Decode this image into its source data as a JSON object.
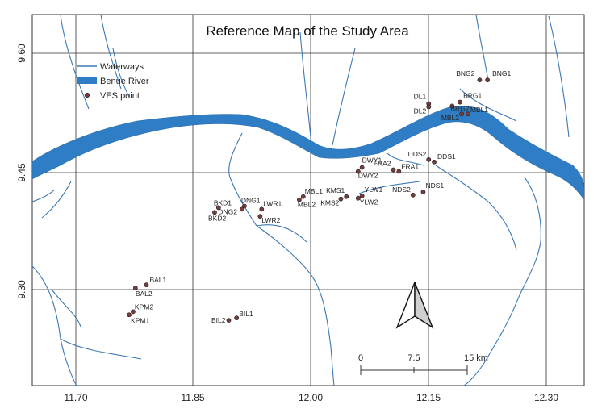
{
  "title": "Reference Map of the Study Area",
  "x_ticks": [
    "11.70",
    "11.85",
    "12.00",
    "12.15",
    "12.30"
  ],
  "y_ticks": [
    "9.60",
    "9.45",
    "9.30"
  ],
  "legend": {
    "waterways": "Waterways",
    "river": "Benue River",
    "ves": "VES point"
  },
  "colors": {
    "waterway": "#3c78b4",
    "river": "#2f7dc4",
    "point_fill": "#7a3b3b",
    "grid": "#333333"
  },
  "scale_bar": {
    "zero": "0",
    "mid": "7.5",
    "end": "15 km"
  },
  "north_arrow_icon": "north-arrow-icon",
  "ves_points": [
    {
      "name": "BNG2",
      "lon": 12.215,
      "lat": 9.566
    },
    {
      "name": "BNG1",
      "lon": 12.225,
      "lat": 9.566
    },
    {
      "name": "DL1",
      "lon": 12.15,
      "lat": 9.536
    },
    {
      "name": "DL2",
      "lon": 12.15,
      "lat": 9.532
    },
    {
      "name": "BRG1",
      "lon": 12.19,
      "lat": 9.538
    },
    {
      "name": "BRG2",
      "lon": 12.18,
      "lat": 9.533
    },
    {
      "name": "MBL1",
      "lon": 12.2,
      "lat": 9.523
    },
    {
      "name": "MBL2",
      "lon": 12.192,
      "lat": 9.523
    },
    {
      "name": "DDS2",
      "lon": 12.15,
      "lat": 9.465
    },
    {
      "name": "DDS1",
      "lon": 12.157,
      "lat": 9.462
    },
    {
      "name": "DWY1",
      "lon": 12.065,
      "lat": 9.455
    },
    {
      "name": "DWY2",
      "lon": 12.06,
      "lat": 9.45
    },
    {
      "name": "FRA2",
      "lon": 12.105,
      "lat": 9.452
    },
    {
      "name": "FRA1",
      "lon": 12.112,
      "lat": 9.45
    },
    {
      "name": "NDS2",
      "lon": 12.13,
      "lat": 9.42
    },
    {
      "name": "NDS1",
      "lon": 12.143,
      "lat": 9.424
    },
    {
      "name": "YLW1",
      "lon": 12.065,
      "lat": 9.419
    },
    {
      "name": "YLW2",
      "lon": 12.06,
      "lat": 9.416
    },
    {
      "name": "KMS1",
      "lon": 12.045,
      "lat": 9.418
    },
    {
      "name": "KMS2",
      "lon": 12.038,
      "lat": 9.415
    },
    {
      "name": "MBL1",
      "lon": 11.99,
      "lat": 9.418
    },
    {
      "name": "MBL2",
      "lon": 11.985,
      "lat": 9.414
    },
    {
      "name": "DNG1",
      "lon": 11.915,
      "lat": 9.406
    },
    {
      "name": "DNG2",
      "lon": 11.912,
      "lat": 9.402
    },
    {
      "name": "LWR1",
      "lon": 11.937,
      "lat": 9.402
    },
    {
      "name": "LWR2",
      "lon": 11.935,
      "lat": 9.393
    },
    {
      "name": "BKD1",
      "lon": 11.882,
      "lat": 9.404
    },
    {
      "name": "BKD2",
      "lon": 11.877,
      "lat": 9.398
    },
    {
      "name": "BAL1",
      "lon": 11.79,
      "lat": 9.306
    },
    {
      "name": "BAL2",
      "lon": 11.776,
      "lat": 9.302
    },
    {
      "name": "KPM2",
      "lon": 11.773,
      "lat": 9.272
    },
    {
      "name": "KPM1",
      "lon": 11.768,
      "lat": 9.268
    },
    {
      "name": "BIL2",
      "lon": 11.895,
      "lat": 9.261
    },
    {
      "name": "BIL1",
      "lon": 11.905,
      "lat": 9.264
    }
  ]
}
